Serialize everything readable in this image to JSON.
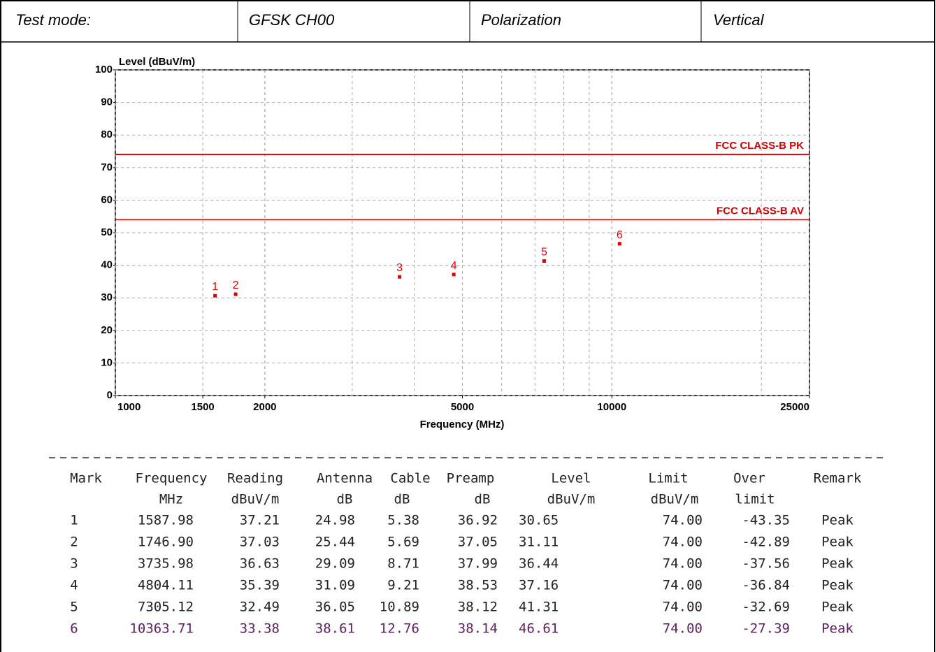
{
  "header": {
    "cells": [
      "Test mode:",
      "GFSK CH00",
      "Polarization",
      "Vertical"
    ]
  },
  "chart_data": {
    "type": "scatter",
    "ylabel": "Level (dBuV/m)",
    "xlabel": "Frequency (MHz)",
    "xscale": "log",
    "xlim": [
      1000,
      25000
    ],
    "xticks": [
      1000,
      1500,
      2000,
      5000,
      10000,
      25000
    ],
    "ylim": [
      0,
      100
    ],
    "yticks": [
      0,
      10,
      20,
      30,
      40,
      50,
      60,
      70,
      80,
      90,
      100
    ],
    "grid": true,
    "limits": [
      {
        "name": "FCC CLASS-B PK",
        "value": 74,
        "color": "#d40000"
      },
      {
        "name": "FCC CLASS-B AV",
        "value": 54,
        "color": "#d40000"
      }
    ],
    "series": [
      {
        "color": "#e00000",
        "x": [
          1587.98,
          1746.9,
          3735.98,
          4804.11,
          7305.12,
          10363.71
        ],
        "values": [
          30.65,
          31.11,
          36.44,
          37.16,
          41.31,
          46.61
        ],
        "point_labels": [
          "1",
          "2",
          "3",
          "4",
          "5",
          "6"
        ]
      }
    ]
  },
  "table": {
    "columns": [
      {
        "name": "Mark"
      },
      {
        "name": "Frequency",
        "unit": "MHz"
      },
      {
        "name": "Reading",
        "unit": "dBuV/m"
      },
      {
        "name": "Antenna",
        "unit": "dB"
      },
      {
        "name": "Cable",
        "unit": "dB"
      },
      {
        "name": "Preamp",
        "unit": "dB"
      },
      {
        "name": "Level",
        "unit": "dBuV/m"
      },
      {
        "name": "Limit",
        "unit": "dBuV/m"
      },
      {
        "name": "Over",
        "unit": "limit"
      },
      {
        "name": "Remark"
      }
    ],
    "rows": [
      [
        "1",
        "1587.98",
        "37.21",
        "24.98",
        "5.38",
        "36.92",
        "30.65",
        "74.00",
        "-43.35",
        "Peak"
      ],
      [
        "2",
        "1746.90",
        "37.03",
        "25.44",
        "5.69",
        "37.05",
        "31.11",
        "74.00",
        "-42.89",
        "Peak"
      ],
      [
        "3",
        "3735.98",
        "36.63",
        "29.09",
        "8.71",
        "37.99",
        "36.44",
        "74.00",
        "-37.56",
        "Peak"
      ],
      [
        "4",
        "4804.11",
        "35.39",
        "31.09",
        "9.21",
        "38.53",
        "37.16",
        "74.00",
        "-36.84",
        "Peak"
      ],
      [
        "5",
        "7305.12",
        "32.49",
        "36.05",
        "10.89",
        "38.12",
        "41.31",
        "74.00",
        "-32.69",
        "Peak"
      ],
      [
        "6",
        "10363.71",
        "33.38",
        "38.61",
        "12.76",
        "38.14",
        "46.61",
        "74.00",
        "-27.39",
        "Peak"
      ]
    ]
  }
}
